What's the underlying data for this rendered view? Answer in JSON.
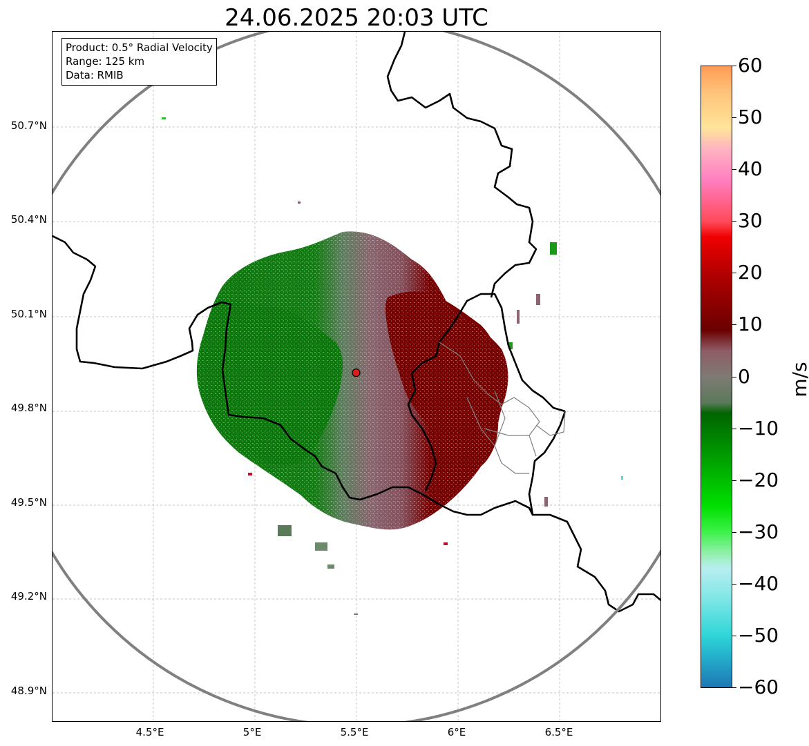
{
  "title": "24.06.2025 20:03 UTC",
  "info": {
    "line1": "Product: 0.5° Radial Velocity",
    "line2": "Range: 125 km",
    "line3": "Data: RMIB"
  },
  "axes": {
    "lon_range": [
      4.02,
      7.0
    ],
    "lat_range": [
      48.8,
      51.0
    ],
    "x_ticks": [
      {
        "value": 4.5,
        "label": "4.5°E"
      },
      {
        "value": 5.0,
        "label": "5°E"
      },
      {
        "value": 5.5,
        "label": "5.5°E"
      },
      {
        "value": 6.0,
        "label": "6°E"
      },
      {
        "value": 6.5,
        "label": "6.5°E"
      }
    ],
    "y_ticks": [
      {
        "value": 50.7,
        "label": "50.7°N"
      },
      {
        "value": 50.4,
        "label": "50.4°N"
      },
      {
        "value": 50.1,
        "label": "50.1°N"
      },
      {
        "value": 49.8,
        "label": "49.8°N"
      },
      {
        "value": 49.5,
        "label": "49.5°N"
      },
      {
        "value": 49.2,
        "label": "49.2°N"
      },
      {
        "value": 48.9,
        "label": "48.9°N"
      }
    ],
    "grid": true
  },
  "radar": {
    "site_lon": 5.505,
    "site_lat": 49.914,
    "range_km": 125,
    "range_ring_color": "#808080",
    "site_color": "#e31a1c"
  },
  "colorbar": {
    "label": "m/s",
    "min": -60,
    "max": 60,
    "ticks": [
      {
        "value": 60,
        "label": "60"
      },
      {
        "value": 50,
        "label": "50"
      },
      {
        "value": 40,
        "label": "40"
      },
      {
        "value": 30,
        "label": "30"
      },
      {
        "value": 20,
        "label": "20"
      },
      {
        "value": 10,
        "label": "10"
      },
      {
        "value": 0,
        "label": "0"
      },
      {
        "value": -10,
        "label": "−10"
      },
      {
        "value": -20,
        "label": "−20"
      },
      {
        "value": -30,
        "label": "−30"
      },
      {
        "value": -40,
        "label": "−40"
      },
      {
        "value": -50,
        "label": "−50"
      },
      {
        "value": -60,
        "label": "−60"
      }
    ],
    "stops": [
      {
        "value": -60,
        "color": "#1f77b4"
      },
      {
        "value": -55,
        "color": "#22a7c9"
      },
      {
        "value": -50,
        "color": "#2fd6d8"
      },
      {
        "value": -43,
        "color": "#7ee6e6"
      },
      {
        "value": -37,
        "color": "#b8eef0"
      },
      {
        "value": -34,
        "color": "#8ff0a8"
      },
      {
        "value": -30,
        "color": "#3ef14a"
      },
      {
        "value": -25,
        "color": "#00e000"
      },
      {
        "value": -15,
        "color": "#009a00"
      },
      {
        "value": -7,
        "color": "#006400"
      },
      {
        "value": -5,
        "color": "#5a7a5a"
      },
      {
        "value": 0,
        "color": "#7f7a74"
      },
      {
        "value": 5,
        "color": "#8e5c66"
      },
      {
        "value": 9,
        "color": "#6b0000"
      },
      {
        "value": 20,
        "color": "#b30000"
      },
      {
        "value": 27,
        "color": "#f00000"
      },
      {
        "value": 30,
        "color": "#ff4a5a"
      },
      {
        "value": 38,
        "color": "#ff7fc0"
      },
      {
        "value": 44,
        "color": "#ffb3c1"
      },
      {
        "value": 48,
        "color": "#ffe59a"
      },
      {
        "value": 55,
        "color": "#ffc37a"
      },
      {
        "value": 60,
        "color": "#ff9a55"
      }
    ]
  },
  "velocity_regions": [
    {
      "name": "inbound",
      "color": "#0a7a0a"
    },
    {
      "name": "near-zero inbound",
      "color": "#5f7f5f"
    },
    {
      "name": "near-zero outbound",
      "color": "#8a6670"
    },
    {
      "name": "outbound",
      "color": "#7a0000"
    }
  ]
}
